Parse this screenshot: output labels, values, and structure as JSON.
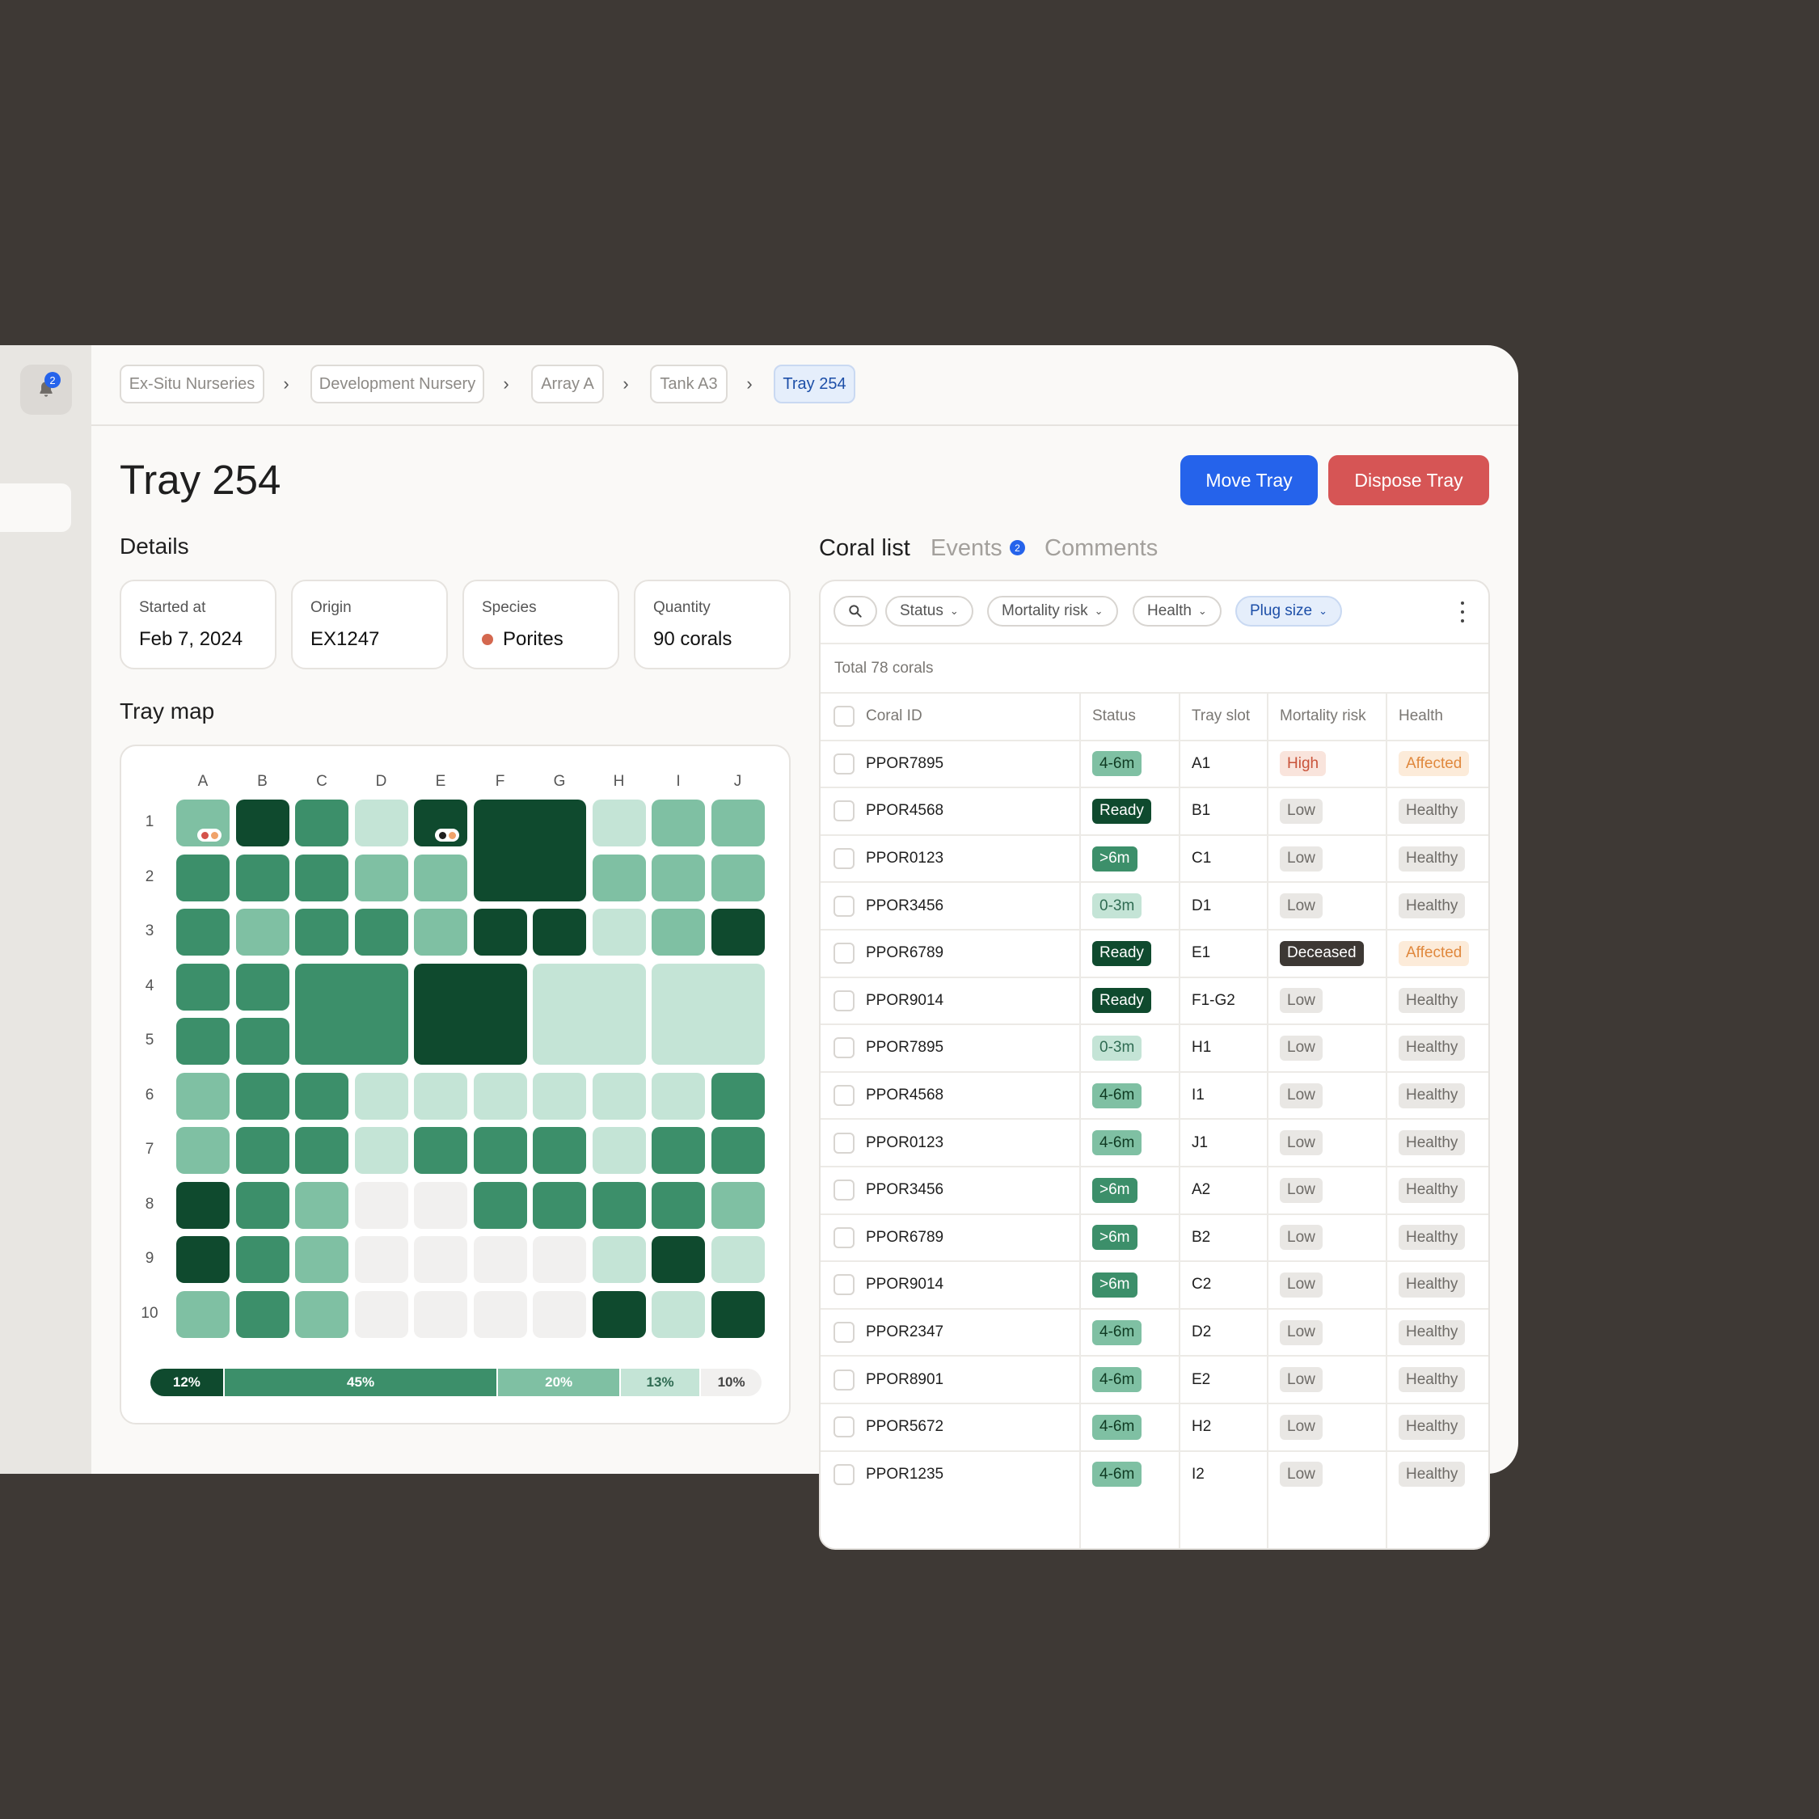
{
  "notifications": {
    "count": "2"
  },
  "breadcrumbs": [
    "Ex-Situ Nurseries",
    "Development Nursery",
    "Array A",
    "Tank A3",
    "Tray 254"
  ],
  "page": {
    "title": "Tray 254",
    "move_label": "Move Tray",
    "dispose_label": "Dispose Tray"
  },
  "details": {
    "heading": "Details",
    "cards": [
      {
        "label": "Started at",
        "value": "Feb 7, 2024"
      },
      {
        "label": "Origin",
        "value": "EX1247"
      },
      {
        "label": "Species",
        "value": "Porites"
      },
      {
        "label": "Quantity",
        "value": "90 corals"
      }
    ]
  },
  "tray_map": {
    "heading": "Tray map",
    "columns": [
      "A",
      "B",
      "C",
      "D",
      "E",
      "F",
      "G",
      "H",
      "I",
      "J"
    ],
    "rows": [
      "1",
      "2",
      "3",
      "4",
      "5",
      "6",
      "7",
      "8",
      "9",
      "10"
    ],
    "grid_levels": [
      [
        2,
        4,
        3,
        1,
        4,
        4,
        4,
        1,
        2,
        2
      ],
      [
        3,
        3,
        3,
        2,
        2,
        4,
        4,
        2,
        2,
        2
      ],
      [
        3,
        2,
        3,
        3,
        2,
        4,
        4,
        1,
        2,
        4
      ],
      [
        3,
        3,
        3,
        3,
        4,
        4,
        1,
        1,
        1,
        1
      ],
      [
        3,
        3,
        3,
        3,
        4,
        4,
        1,
        1,
        1,
        1
      ],
      [
        2,
        3,
        3,
        1,
        1,
        1,
        1,
        1,
        1,
        3
      ],
      [
        2,
        3,
        3,
        1,
        3,
        3,
        3,
        1,
        3,
        3
      ],
      [
        4,
        3,
        2,
        0,
        0,
        3,
        3,
        3,
        3,
        2
      ],
      [
        4,
        3,
        2,
        0,
        0,
        0,
        0,
        1,
        4,
        1
      ],
      [
        2,
        3,
        2,
        0,
        0,
        0,
        0,
        4,
        1,
        4
      ]
    ],
    "merged_blocks": [
      {
        "cells": "F1-G2",
        "level": 4
      },
      {
        "cells": "C4-D5",
        "level": 3
      },
      {
        "cells": "E4-F5",
        "level": 4
      },
      {
        "cells": "G4-H5",
        "level": 1
      },
      {
        "cells": "I4-J5",
        "level": 1
      }
    ],
    "markers": [
      {
        "cell": "A1",
        "colors": [
          "#d4524a",
          "#f0a36a"
        ]
      },
      {
        "cell": "E1",
        "colors": [
          "#1f1f1f",
          "#f0a36a"
        ]
      }
    ],
    "level_colors": [
      "#f1f0ef",
      "#c4e4d6",
      "#7fc0a3",
      "#3c8f6a",
      "#0f4a2e"
    ],
    "distribution": [
      {
        "label": "12%",
        "value": 12
      },
      {
        "label": "45%",
        "value": 45
      },
      {
        "label": "20%",
        "value": 20
      },
      {
        "label": "13%",
        "value": 13
      },
      {
        "label": "10%",
        "value": 10
      }
    ]
  },
  "tabs": [
    {
      "label": "Coral list",
      "active": true
    },
    {
      "label": "Events",
      "badge": "2"
    },
    {
      "label": "Comments"
    }
  ],
  "filters": [
    "Status",
    "Mortality risk",
    "Health",
    "Plug size"
  ],
  "active_filter": "Plug size",
  "total_label": "Total 78 corals",
  "table": {
    "headers": [
      "Coral ID",
      "Status",
      "Tray slot",
      "Mortality risk",
      "Health"
    ],
    "rows": [
      {
        "id": "PPOR7895",
        "status": "4-6m",
        "slot": "A1",
        "risk": "High",
        "health": "Affected"
      },
      {
        "id": "PPOR4568",
        "status": "Ready",
        "slot": "B1",
        "risk": "Low",
        "health": "Healthy"
      },
      {
        "id": "PPOR0123",
        "status": ">6m",
        "slot": "C1",
        "risk": "Low",
        "health": "Healthy"
      },
      {
        "id": "PPOR3456",
        "status": "0-3m",
        "slot": "D1",
        "risk": "Low",
        "health": "Healthy"
      },
      {
        "id": "PPOR6789",
        "status": "Ready",
        "slot": "E1",
        "risk": "Deceased",
        "health": "Affected"
      },
      {
        "id": "PPOR9014",
        "status": "Ready",
        "slot": "F1-G2",
        "risk": "Low",
        "health": "Healthy"
      },
      {
        "id": "PPOR7895",
        "status": "0-3m",
        "slot": "H1",
        "risk": "Low",
        "health": "Healthy"
      },
      {
        "id": "PPOR4568",
        "status": "4-6m",
        "slot": "I1",
        "risk": "Low",
        "health": "Healthy"
      },
      {
        "id": "PPOR0123",
        "status": "4-6m",
        "slot": "J1",
        "risk": "Low",
        "health": "Healthy"
      },
      {
        "id": "PPOR3456",
        "status": ">6m",
        "slot": "A2",
        "risk": "Low",
        "health": "Healthy"
      },
      {
        "id": "PPOR6789",
        "status": ">6m",
        "slot": "B2",
        "risk": "Low",
        "health": "Healthy"
      },
      {
        "id": "PPOR9014",
        "status": ">6m",
        "slot": "C2",
        "risk": "Low",
        "health": "Healthy"
      },
      {
        "id": "PPOR2347",
        "status": "4-6m",
        "slot": "D2",
        "risk": "Low",
        "health": "Healthy"
      },
      {
        "id": "PPOR8901",
        "status": "4-6m",
        "slot": "E2",
        "risk": "Low",
        "health": "Healthy"
      },
      {
        "id": "PPOR5672",
        "status": "4-6m",
        "slot": "H2",
        "risk": "Low",
        "health": "Healthy"
      },
      {
        "id": "PPOR1235",
        "status": "4-6m",
        "slot": "I2",
        "risk": "Low",
        "health": "Healthy"
      }
    ]
  },
  "colors": {
    "accent": "#2563eb",
    "danger": "#d65555"
  }
}
